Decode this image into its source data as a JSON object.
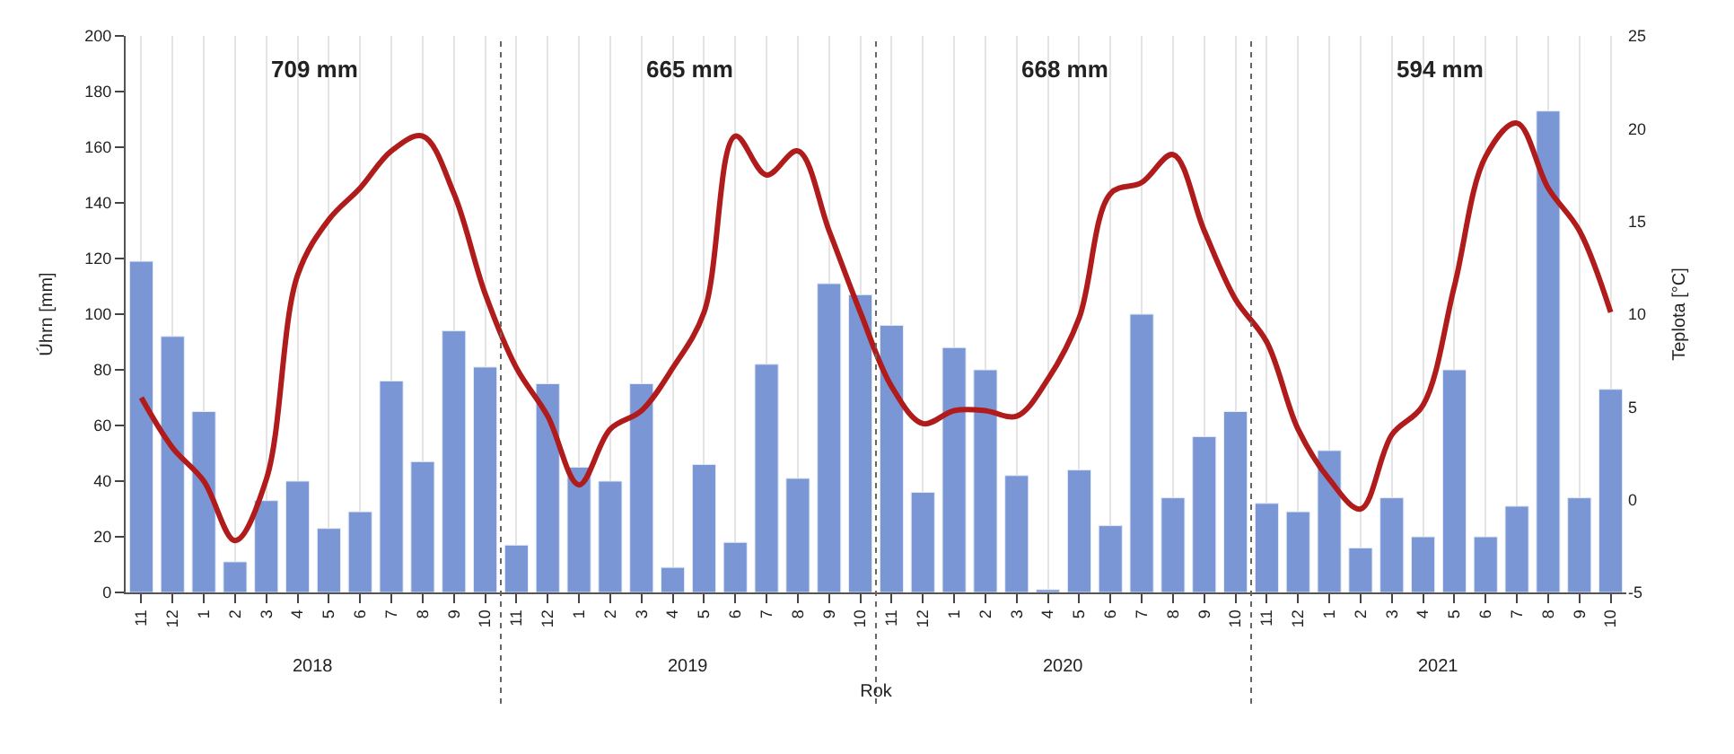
{
  "chart_data": {
    "type": "bar",
    "categories": [
      "11",
      "12",
      "1",
      "2",
      "3",
      "4",
      "5",
      "6",
      "7",
      "8",
      "9",
      "10",
      "11",
      "12",
      "1",
      "2",
      "3",
      "4",
      "5",
      "6",
      "7",
      "8",
      "9",
      "10",
      "11",
      "12",
      "1",
      "2",
      "3",
      "4",
      "5",
      "6",
      "7",
      "8",
      "9",
      "10",
      "11",
      "12",
      "1",
      "2",
      "3",
      "4",
      "5",
      "6",
      "7",
      "8",
      "9",
      "10"
    ],
    "series": [
      {
        "color": "#7b96d4",
        "values": [
          119,
          92,
          65,
          11,
          33,
          40,
          23,
          29,
          76,
          47,
          94,
          81,
          17,
          75,
          45,
          40,
          75,
          9,
          46,
          18,
          82,
          41,
          111,
          107,
          96,
          36,
          88,
          80,
          42,
          1,
          44,
          24,
          100,
          34,
          56,
          65,
          32,
          29,
          51,
          16,
          34,
          20,
          80,
          20,
          31,
          173,
          34,
          73
        ]
      },
      {
        "type": "line",
        "axis": "y2",
        "color": "#b01c1c",
        "values": [
          5.5,
          2.8,
          1.0,
          -2.2,
          1.1,
          12.1,
          15.1,
          16.8,
          18.8,
          19.6,
          16.5,
          11.1,
          7.1,
          4.5,
          0.8,
          3.8,
          4.8,
          7.1,
          10.1,
          19.6,
          17.5,
          18.8,
          14.5,
          10.1,
          6.1,
          4.1,
          4.8,
          4.8,
          4.5,
          6.5,
          9.8,
          16.5,
          17.1,
          18.6,
          14.5,
          10.8,
          8.5,
          3.8,
          1.1,
          -0.5,
          3.5,
          5.1,
          11.5,
          18.5,
          20.3,
          16.8,
          14.5,
          10.1
        ]
      }
    ],
    "xlabel": "Rok",
    "ylabel": "Úhrn [mm]",
    "y2label": "Teplota [°C]",
    "ylim": [
      0,
      200
    ],
    "yticks": [
      0,
      20,
      40,
      60,
      80,
      100,
      120,
      140,
      160,
      180,
      200
    ],
    "y2lim": [
      -5,
      25
    ],
    "y2ticks": [
      -5,
      0,
      5,
      10,
      15,
      20,
      25
    ],
    "annotations": [
      "709 mm",
      "665 mm",
      "668 mm",
      "594 mm",
      "2018",
      "2019",
      "2020",
      "2021"
    ],
    "grid": "x",
    "legend": false,
    "marker": "none",
    "line_style": "solid"
  }
}
